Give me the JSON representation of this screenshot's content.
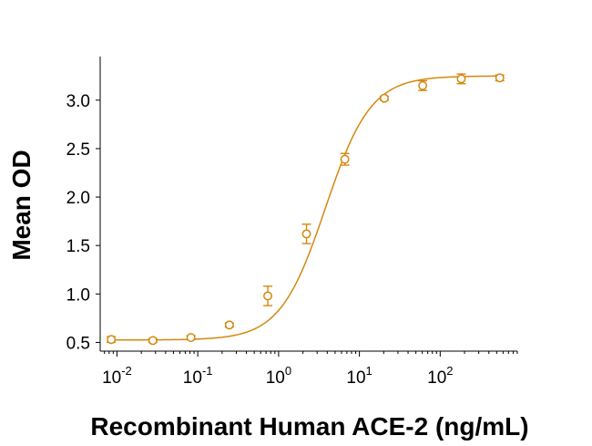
{
  "chart_data": {
    "type": "scatter",
    "title": "",
    "xlabel": "Recombinant Human ACE-2 (ng/mL)",
    "ylabel": "Mean OD",
    "x_scale": "log",
    "x_tick_values": [
      0.01,
      0.1,
      1,
      10,
      100
    ],
    "x_tick_labels": [
      {
        "base": "10",
        "exp": "-2"
      },
      {
        "base": "10",
        "exp": "-1"
      },
      {
        "base": "10",
        "exp": "0"
      },
      {
        "base": "10",
        "exp": "1"
      },
      {
        "base": "10",
        "exp": "2"
      }
    ],
    "xlim": [
      0.0062,
      900
    ],
    "ylim": [
      0.41,
      3.45
    ],
    "y_ticks": [
      0.5,
      1.0,
      1.5,
      2.0,
      2.5,
      3.0
    ],
    "y_tick_labels": [
      "0.5",
      "1.0",
      "1.5",
      "2.0",
      "2.5",
      "3.0"
    ],
    "grid": false,
    "color": "#D4880F",
    "series": [
      {
        "marker": "open-circle",
        "x": [
          0.0085,
          0.0278,
          0.0823,
          0.2461,
          0.7355,
          2.2149,
          6.6035,
          20.3488,
          60.7115,
          182.2893,
          545.9722
        ],
        "y": [
          0.53,
          0.52,
          0.55,
          0.68,
          0.98,
          1.62,
          2.39,
          3.02,
          3.15,
          3.22,
          3.23
        ],
        "error": [
          0.03,
          0.02,
          0.02,
          0.02,
          0.1,
          0.1,
          0.06,
          0.02,
          0.05,
          0.05,
          0.03
        ]
      }
    ],
    "fit_curve": {
      "model": "4PL",
      "bottom": 0.525,
      "top": 3.25,
      "ec50": 3.8,
      "hill": 1.55
    }
  }
}
